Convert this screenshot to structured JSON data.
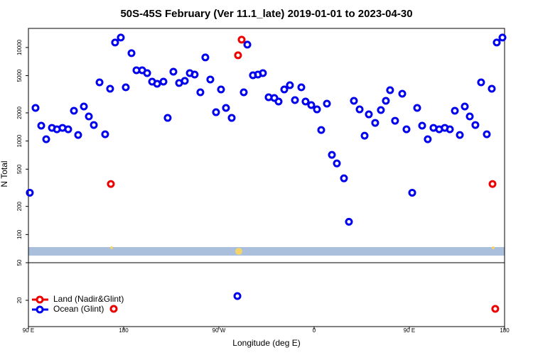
{
  "chart_data": [
    {
      "type": "scatter",
      "title": "50S-45S February (Ver 11.1_late)   2019-01-01 to 2023-04-30",
      "y_label": "N Total",
      "log_scale": true,
      "xlim": [
        90,
        540
      ],
      "ylim": [
        50,
        16000
      ],
      "yticks": [
        100,
        200,
        500,
        1000,
        2000,
        5000,
        10000
      ],
      "series": [
        {
          "color": "#ee0000",
          "x": [
            167.9,
            288.1,
            291.5,
            528.6
          ],
          "values": [
            347,
            8250,
            12130,
            347
          ]
        },
        {
          "color": "#0000ee",
          "x": [
            91.3,
            96.7,
            102.1,
            106.8,
            112.2,
            116.9,
            122.2,
            127.6,
            133.0,
            137.0,
            142.4,
            147.1,
            151.8,
            157.2,
            162.5,
            167.2,
            171.9,
            177.3,
            182.0,
            187.4,
            192.1,
            197.5,
            202.2,
            206.9,
            211.6,
            217.6,
            221.6,
            227.0,
            232.4,
            237.8,
            242.5,
            247.1,
            252.5,
            257.2,
            261.9,
            267.3,
            272.0,
            276.7,
            282.1,
            293.5,
            296.9,
            302.2,
            306.9,
            311.6,
            317.0,
            322.4,
            326.4,
            331.8,
            337.1,
            341.9,
            347.9,
            351.9,
            357.3,
            362.7,
            366.7,
            372.1,
            376.8,
            381.5,
            388.2,
            392.9,
            397.6,
            403.0,
            407.7,
            411.7,
            417.7,
            423.1,
            427.8,
            431.8,
            436.5,
            443.3,
            447.3,
            452.7,
            457.4,
            462.1,
            467.4,
            472.8,
            478.2,
            483.5,
            488.3,
            493.0,
            497.7,
            502.4,
            507.1,
            512.4,
            517.8,
            523.2,
            527.9,
            532.6,
            538.0
          ],
          "values": [
            280,
            2260,
            1460,
            1045,
            1383,
            1335,
            1383,
            1335,
            2105,
            1160,
            2338,
            1830,
            1483,
            4240,
            1181,
            3622,
            11300,
            12770,
            3750,
            8690,
            5710,
            5710,
            5325,
            4315,
            4095,
            4315,
            1767,
            5510,
            4170,
            4395,
            5325,
            5140,
            3318,
            7830,
            4550,
            2032,
            3560,
            2260,
            1767,
            3318,
            10720,
            5050,
            5140,
            5325,
            2936,
            2884,
            2642,
            3560,
            3954,
            2737,
            3750,
            2642,
            2421,
            2179,
            1312,
            2508,
            711,
            576,
            399,
            137,
            2690,
            2179,
            1140,
            1928,
            1563,
            2142,
            2690,
            3497,
            1647,
            3205,
            1335,
            280,
            2260,
            1460,
            1045,
            1383,
            1335,
            1383,
            1335,
            2105,
            1160,
            2338,
            1830,
            1483,
            4240,
            1181,
            3622,
            11300,
            12770
          ]
        }
      ]
    },
    {
      "type": "scatter",
      "x_label": "Longitude (deg E)",
      "log_scale": false,
      "xlim": [
        90,
        540
      ],
      "ylim": [
        0,
        50
      ],
      "xticks": [
        {
          "value": 90,
          "label": "90 E"
        },
        180,
        {
          "value": 270,
          "label": "90 W"
        },
        {
          "value": 360,
          "label": "0"
        },
        {
          "value": 450,
          "label": "90 E"
        },
        {
          "value": 540,
          "label": "180"
        }
      ],
      "yticks": [
        20,
        50
      ],
      "legend": "lower left",
      "series": [
        {
          "name": "Land (Nadir&Glint)",
          "color": "#ee0000",
          "x": [
            170.6,
            531.2
          ],
          "values": [
            13.2,
            13.2
          ]
        },
        {
          "name": "Ocean (Glint)",
          "color": "#0000ee",
          "x": [
            287.5
          ],
          "values": [
            23.4
          ]
        }
      ]
    }
  ]
}
